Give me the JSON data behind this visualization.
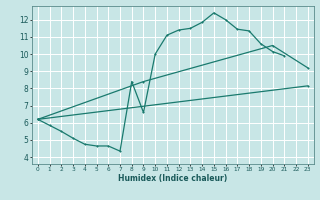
{
  "background_color": "#c8e6e6",
  "grid_color": "#b0d4d4",
  "line_color": "#1a7a6e",
  "xlabel": "Humidex (Indice chaleur)",
  "xlim": [
    -0.5,
    23.5
  ],
  "ylim": [
    3.6,
    12.8
  ],
  "yticks": [
    4,
    5,
    6,
    7,
    8,
    9,
    10,
    11,
    12
  ],
  "xticks": [
    0,
    1,
    2,
    3,
    4,
    5,
    6,
    7,
    8,
    9,
    10,
    11,
    12,
    13,
    14,
    15,
    16,
    17,
    18,
    19,
    20,
    21,
    22,
    23
  ],
  "line1_x": [
    0,
    1,
    2,
    3,
    4,
    5,
    6,
    7,
    8,
    9,
    10,
    11,
    12,
    13,
    14,
    15,
    16,
    17,
    18,
    19,
    20,
    21
  ],
  "line1_y": [
    6.2,
    5.85,
    5.5,
    5.1,
    4.75,
    4.65,
    4.65,
    4.35,
    8.4,
    6.6,
    10.0,
    11.1,
    11.4,
    11.5,
    11.85,
    12.4,
    12.0,
    11.45,
    11.35,
    10.6,
    10.15,
    9.9
  ],
  "line2_x": [
    0,
    9,
    20,
    23
  ],
  "line2_y": [
    6.2,
    8.4,
    10.5,
    9.2
  ],
  "line3_x": [
    0,
    23
  ],
  "line3_y": [
    6.2,
    8.15
  ]
}
